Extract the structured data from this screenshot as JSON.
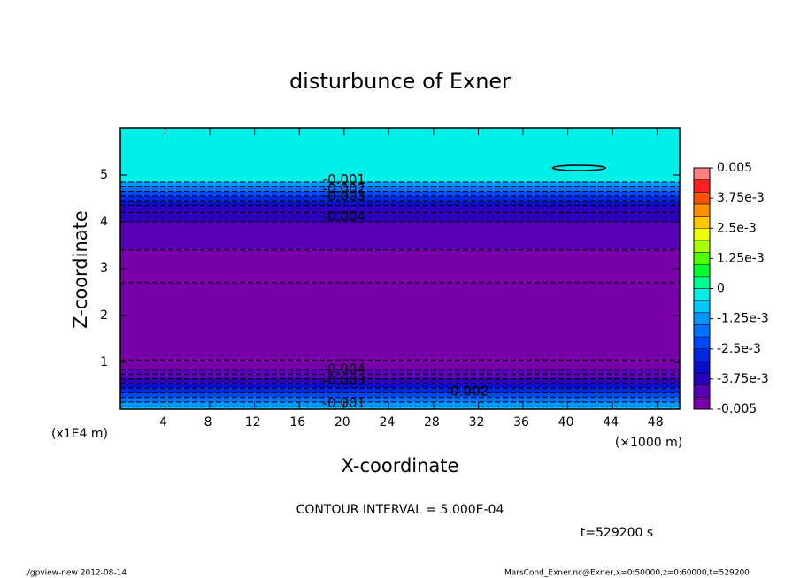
{
  "chart_data": {
    "type": "contour-bands",
    "title": "disturbunce of Exner",
    "x_label": "X-coordinate",
    "y_label": "Z-coordinate",
    "x_unit": "(×1000 m)",
    "y_unit": "(x1E4 m)",
    "xlim": [
      0,
      50
    ],
    "ylim": [
      0,
      6
    ],
    "xticks": [
      4,
      8,
      12,
      16,
      20,
      24,
      28,
      32,
      36,
      40,
      44,
      48
    ],
    "yticks": [
      1,
      2,
      3,
      4,
      5
    ],
    "z_edges": [
      0,
      0.05,
      0.15,
      0.25,
      0.35,
      0.45,
      0.55,
      0.65,
      0.75,
      0.85,
      1.05,
      2.7,
      3.4,
      4.0,
      4.2,
      4.35,
      4.45,
      4.55,
      4.65,
      4.75,
      4.85,
      6
    ],
    "values": [
      -0.0008,
      -0.0012,
      -0.0018,
      -0.0022,
      -0.0027,
      -0.0032,
      -0.0037,
      -0.0042,
      -0.0044,
      -0.0047,
      -0.0049,
      -0.0048,
      -0.0043,
      -0.004,
      -0.0037,
      -0.0032,
      -0.0027,
      -0.0022,
      -0.0017,
      -0.0012,
      -0.0002
    ],
    "contour_labels": [
      {
        "label": "-0.001",
        "x": 20,
        "z": 4.9
      },
      {
        "label": "-0.002",
        "x": 20,
        "z": 4.7
      },
      {
        "label": "-0.003",
        "x": 20,
        "z": 4.55
      },
      {
        "label": "-0.004",
        "x": 20,
        "z": 4.1
      },
      {
        "label": "-0.004",
        "x": 20,
        "z": 0.85
      },
      {
        "label": "-0.003",
        "x": 20,
        "z": 0.6
      },
      {
        "label": "-0.002",
        "x": 31,
        "z": 0.38
      },
      {
        "label": "-0.001",
        "x": 20,
        "z": 0.12
      }
    ],
    "clim": [
      -0.005,
      0.005
    ],
    "cticks": [
      {
        "value": 0.005,
        "label": "0.005"
      },
      {
        "value": 0.00375,
        "label": "3.75e-3"
      },
      {
        "value": 0.0025,
        "label": "2.5e-3"
      },
      {
        "value": 0.00125,
        "label": "1.25e-3"
      },
      0,
      {
        "value": -0.00125,
        "label": "-1.25e-3"
      },
      {
        "value": -0.0025,
        "label": "-2.5e-3"
      },
      {
        "value": -0.00375,
        "label": "-3.75e-3"
      },
      {
        "value": -0.005,
        "label": "-0.005"
      }
    ],
    "colors": [
      "#7800a8",
      "#5a00b4",
      "#2a00b8",
      "#0a10c8",
      "#0028e0",
      "#0048ff",
      "#0070ff",
      "#0098ff",
      "#00c8ff",
      "#00eee8",
      "#00ff90",
      "#00ff30",
      "#50ff00",
      "#a8ff00",
      "#f0ff00",
      "#ffc800",
      "#ff9000",
      "#ff5000",
      "#ff2020",
      "#ff8080"
    ],
    "contour_interval": "CONTOUR INTERVAL = 5.000E-04",
    "time": "t=529200 s",
    "footer_left": "./gpview-new  2012-08-14",
    "footer_right": "MarsCond_Exner.nc@Exner,x=0:50000,z=0:60000,t=529200"
  }
}
